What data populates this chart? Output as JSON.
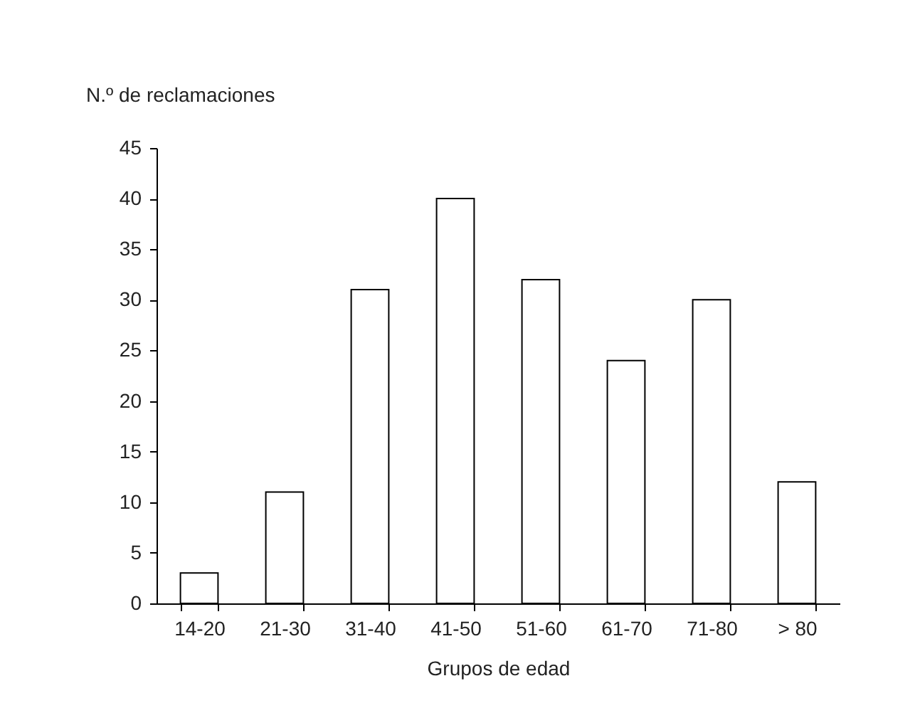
{
  "chart_data": {
    "type": "bar",
    "xlabel": "Grupos de edad",
    "ylabel": "N.º de reclamaciones",
    "categories": [
      "14-20",
      "21-30",
      "31-40",
      "41-50",
      "51-60",
      "61-70",
      "71-80",
      "> 80"
    ],
    "values": [
      3,
      11,
      31,
      40,
      32,
      24,
      30,
      12
    ],
    "color": "#ffffff",
    "ylim": [
      0,
      45
    ],
    "yticks": [
      0,
      5,
      10,
      15,
      20,
      25,
      30,
      35,
      40,
      45
    ],
    "grid": false
  }
}
